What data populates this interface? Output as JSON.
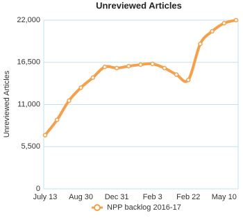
{
  "chart_data": {
    "type": "line",
    "title": "Unreviewed Articles",
    "y_label": "Unreviewed Articles",
    "categories": [
      "July 13",
      null,
      null,
      "Aug 30",
      null,
      null,
      "Dec 31",
      null,
      null,
      "Feb 3",
      null,
      null,
      "Feb 22",
      null,
      null,
      "May 10",
      null
    ],
    "series": [
      {
        "name": "NPP backlog 2016-17",
        "color": "#f5a04a",
        "values": [
          7000,
          9000,
          11500,
          13200,
          14500,
          15900,
          15750,
          16000,
          16200,
          16300,
          15750,
          14900,
          14200,
          18900,
          20550,
          21600,
          22000
        ]
      }
    ],
    "ylim": [
      0,
      22000
    ],
    "yticks": [
      0,
      {
        "value": 5500,
        "label": "5,500"
      },
      {
        "value": 11000,
        "label": "11,000"
      },
      {
        "value": 16500,
        "label": "16,500"
      },
      {
        "value": 22000,
        "label": "22,000"
      }
    ],
    "grid": true,
    "legend": "bottom"
  }
}
